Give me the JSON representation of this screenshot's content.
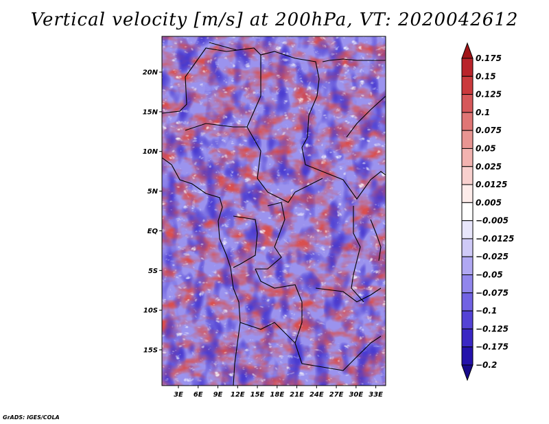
{
  "title": "Vertical velocity [m/s] at 200hPa, VT: 2020042612",
  "credit": "GrADS: IGES/COLA",
  "chart_data": {
    "type": "heatmap",
    "variable": "Vertical velocity",
    "units": "m/s",
    "level": "200hPa",
    "valid_time": "2020042612",
    "x_ticks": [
      "3E",
      "6E",
      "9E",
      "12E",
      "15E",
      "18E",
      "21E",
      "24E",
      "27E",
      "30E",
      "33E"
    ],
    "x_tick_values": [
      3,
      6,
      9,
      12,
      15,
      18,
      21,
      24,
      27,
      30,
      33
    ],
    "y_ticks": [
      "20N",
      "15N",
      "10N",
      "5N",
      "EQ",
      "5S",
      "10S",
      "15S"
    ],
    "y_tick_values": [
      20,
      15,
      10,
      5,
      0,
      -5,
      -10,
      -15
    ],
    "lon_range": [
      0.5,
      34.5
    ],
    "lat_range": [
      -19.5,
      24.5
    ],
    "colorbar": {
      "labels": [
        "0.175",
        "0.15",
        "0.125",
        "0.1",
        "0.075",
        "0.05",
        "0.025",
        "0.0125",
        "0.005",
        "−0.005",
        "−0.0125",
        "−0.025",
        "−0.05",
        "−0.075",
        "−0.1",
        "−0.125",
        "−0.175",
        "−0.2"
      ],
      "colors": [
        "#a11417",
        "#b9242b",
        "#ca3a3d",
        "#d6585a",
        "#e07675",
        "#e89592",
        "#f2b3b0",
        "#f8d0ce",
        "#fdecea",
        "#ffffff",
        "#e8e6fb",
        "#cfcaf7",
        "#b0a8f2",
        "#9186ec",
        "#7263e3",
        "#5443d6",
        "#3a27c4",
        "#2412ab",
        "#180a8a"
      ]
    }
  }
}
